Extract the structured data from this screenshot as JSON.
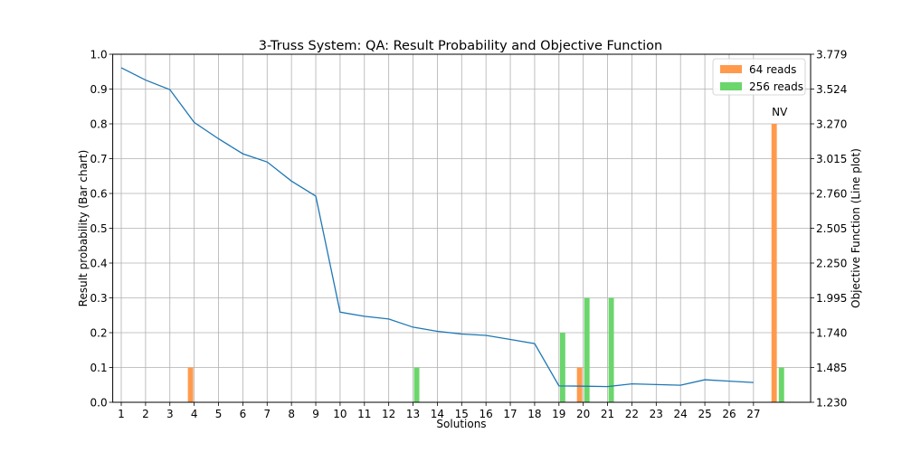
{
  "chart_data": {
    "type": "bar",
    "title": "3-Truss System: QA: Result Probability and Objective Function",
    "xlabel": "Solutions",
    "ylabel": "Result probability (Bar chart)",
    "y2label": "Objective Function (Line plot)",
    "categories": [
      "1",
      "2",
      "3",
      "4",
      "5",
      "6",
      "7",
      "8",
      "9",
      "10",
      "11",
      "12",
      "13",
      "14",
      "15",
      "16",
      "17",
      "18",
      "19",
      "20",
      "21",
      "22",
      "23",
      "24",
      "25",
      "26",
      "27",
      "NV"
    ],
    "ylim": [
      0,
      1.0
    ],
    "yticks": [
      "0.0",
      "0.1",
      "0.2",
      "0.3",
      "0.4",
      "0.5",
      "0.6",
      "0.7",
      "0.8",
      "0.9",
      "1.0"
    ],
    "y2lim": [
      1.23,
      3.779
    ],
    "y2ticks": [
      "1.230",
      "1.485",
      "1.740",
      "1.995",
      "2.250",
      "2.505",
      "2.760",
      "3.015",
      "3.270",
      "3.524",
      "3.779"
    ],
    "grid": true,
    "legend_position": "top-right",
    "series": [
      {
        "name": "64 reads",
        "color": "#ff9a4d",
        "values": [
          0,
          0,
          0,
          0.1,
          0,
          0,
          0,
          0,
          0,
          0,
          0,
          0,
          0,
          0,
          0,
          0,
          0,
          0,
          0,
          0.1,
          0,
          0,
          0,
          0,
          0,
          0,
          0,
          0.8
        ]
      },
      {
        "name": "256 reads",
        "color": "#6bd66b",
        "values": [
          0,
          0,
          0,
          0,
          0,
          0,
          0,
          0,
          0,
          0,
          0,
          0,
          0.1,
          0,
          0,
          0,
          0,
          0,
          0.2,
          0.3,
          0.3,
          0,
          0,
          0,
          0,
          0,
          0,
          0.1
        ]
      }
    ],
    "line": {
      "color": "#1f77b4",
      "values": [
        3.68,
        3.59,
        3.52,
        3.28,
        3.16,
        3.05,
        2.99,
        2.85,
        2.74,
        1.89,
        1.86,
        1.84,
        1.78,
        1.75,
        1.73,
        1.72,
        1.69,
        1.66,
        1.35,
        1.348,
        1.345,
        1.365,
        1.36,
        1.355,
        1.395,
        1.385,
        1.375
      ]
    },
    "annotations": [
      {
        "text": "NV",
        "category": "NV",
        "y": 0.8
      }
    ]
  }
}
